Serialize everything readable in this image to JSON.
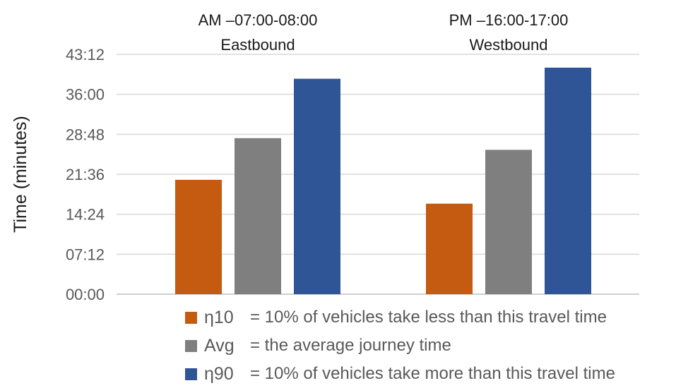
{
  "chart_data": {
    "type": "bar",
    "title": "",
    "xlabel": "",
    "ylabel": "Time (minutes)",
    "categories": [
      {
        "line1": "AM –07:00-08:00",
        "line2": "Eastbound"
      },
      {
        "line1": "PM –16:00-17:00",
        "line2": "Westbound"
      }
    ],
    "series": [
      {
        "key": "η10",
        "description": "= 10% of vehicles take less than this travel time",
        "color": "#c55a11",
        "values_minutes": [
          20.6,
          16.3
        ]
      },
      {
        "key": "Avg",
        "description": "= the average journey time",
        "color": "#7f7f7f",
        "values_minutes": [
          28.1,
          26.0
        ]
      },
      {
        "key": "η90",
        "description": "= 10% of vehicles take more than this travel time",
        "color": "#2f5597",
        "values_minutes": [
          38.8,
          40.8
        ]
      }
    ],
    "ylim": [
      0,
      43.2
    ],
    "yticks": [
      0,
      7.2,
      14.4,
      21.6,
      28.8,
      36,
      43.2
    ],
    "ytick_labels": [
      "00:00",
      "07:12",
      "14:24",
      "21:36",
      "28:48",
      "36:00",
      "43:12"
    ],
    "grid": true,
    "legend_position": "bottom"
  }
}
